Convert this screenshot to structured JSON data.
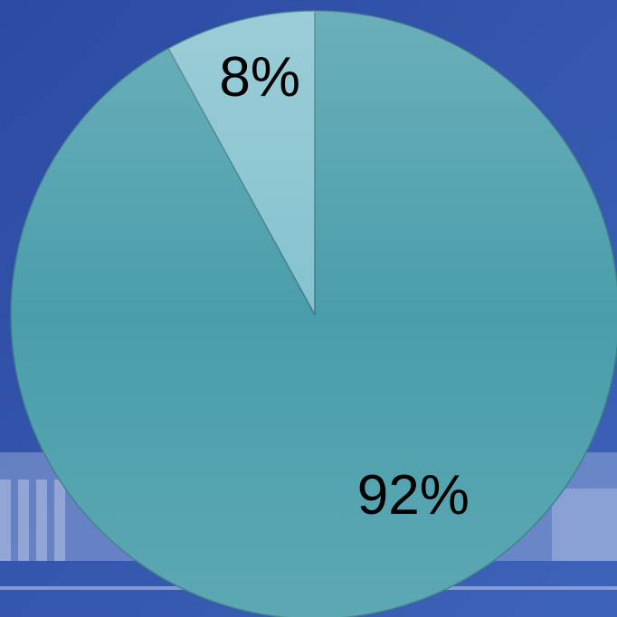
{
  "chart_data": {
    "type": "pie",
    "values": [
      92,
      8
    ],
    "value_labels": [
      "92%",
      "8%"
    ],
    "colors": [
      "#4a9eab",
      "#85c2cf"
    ]
  }
}
